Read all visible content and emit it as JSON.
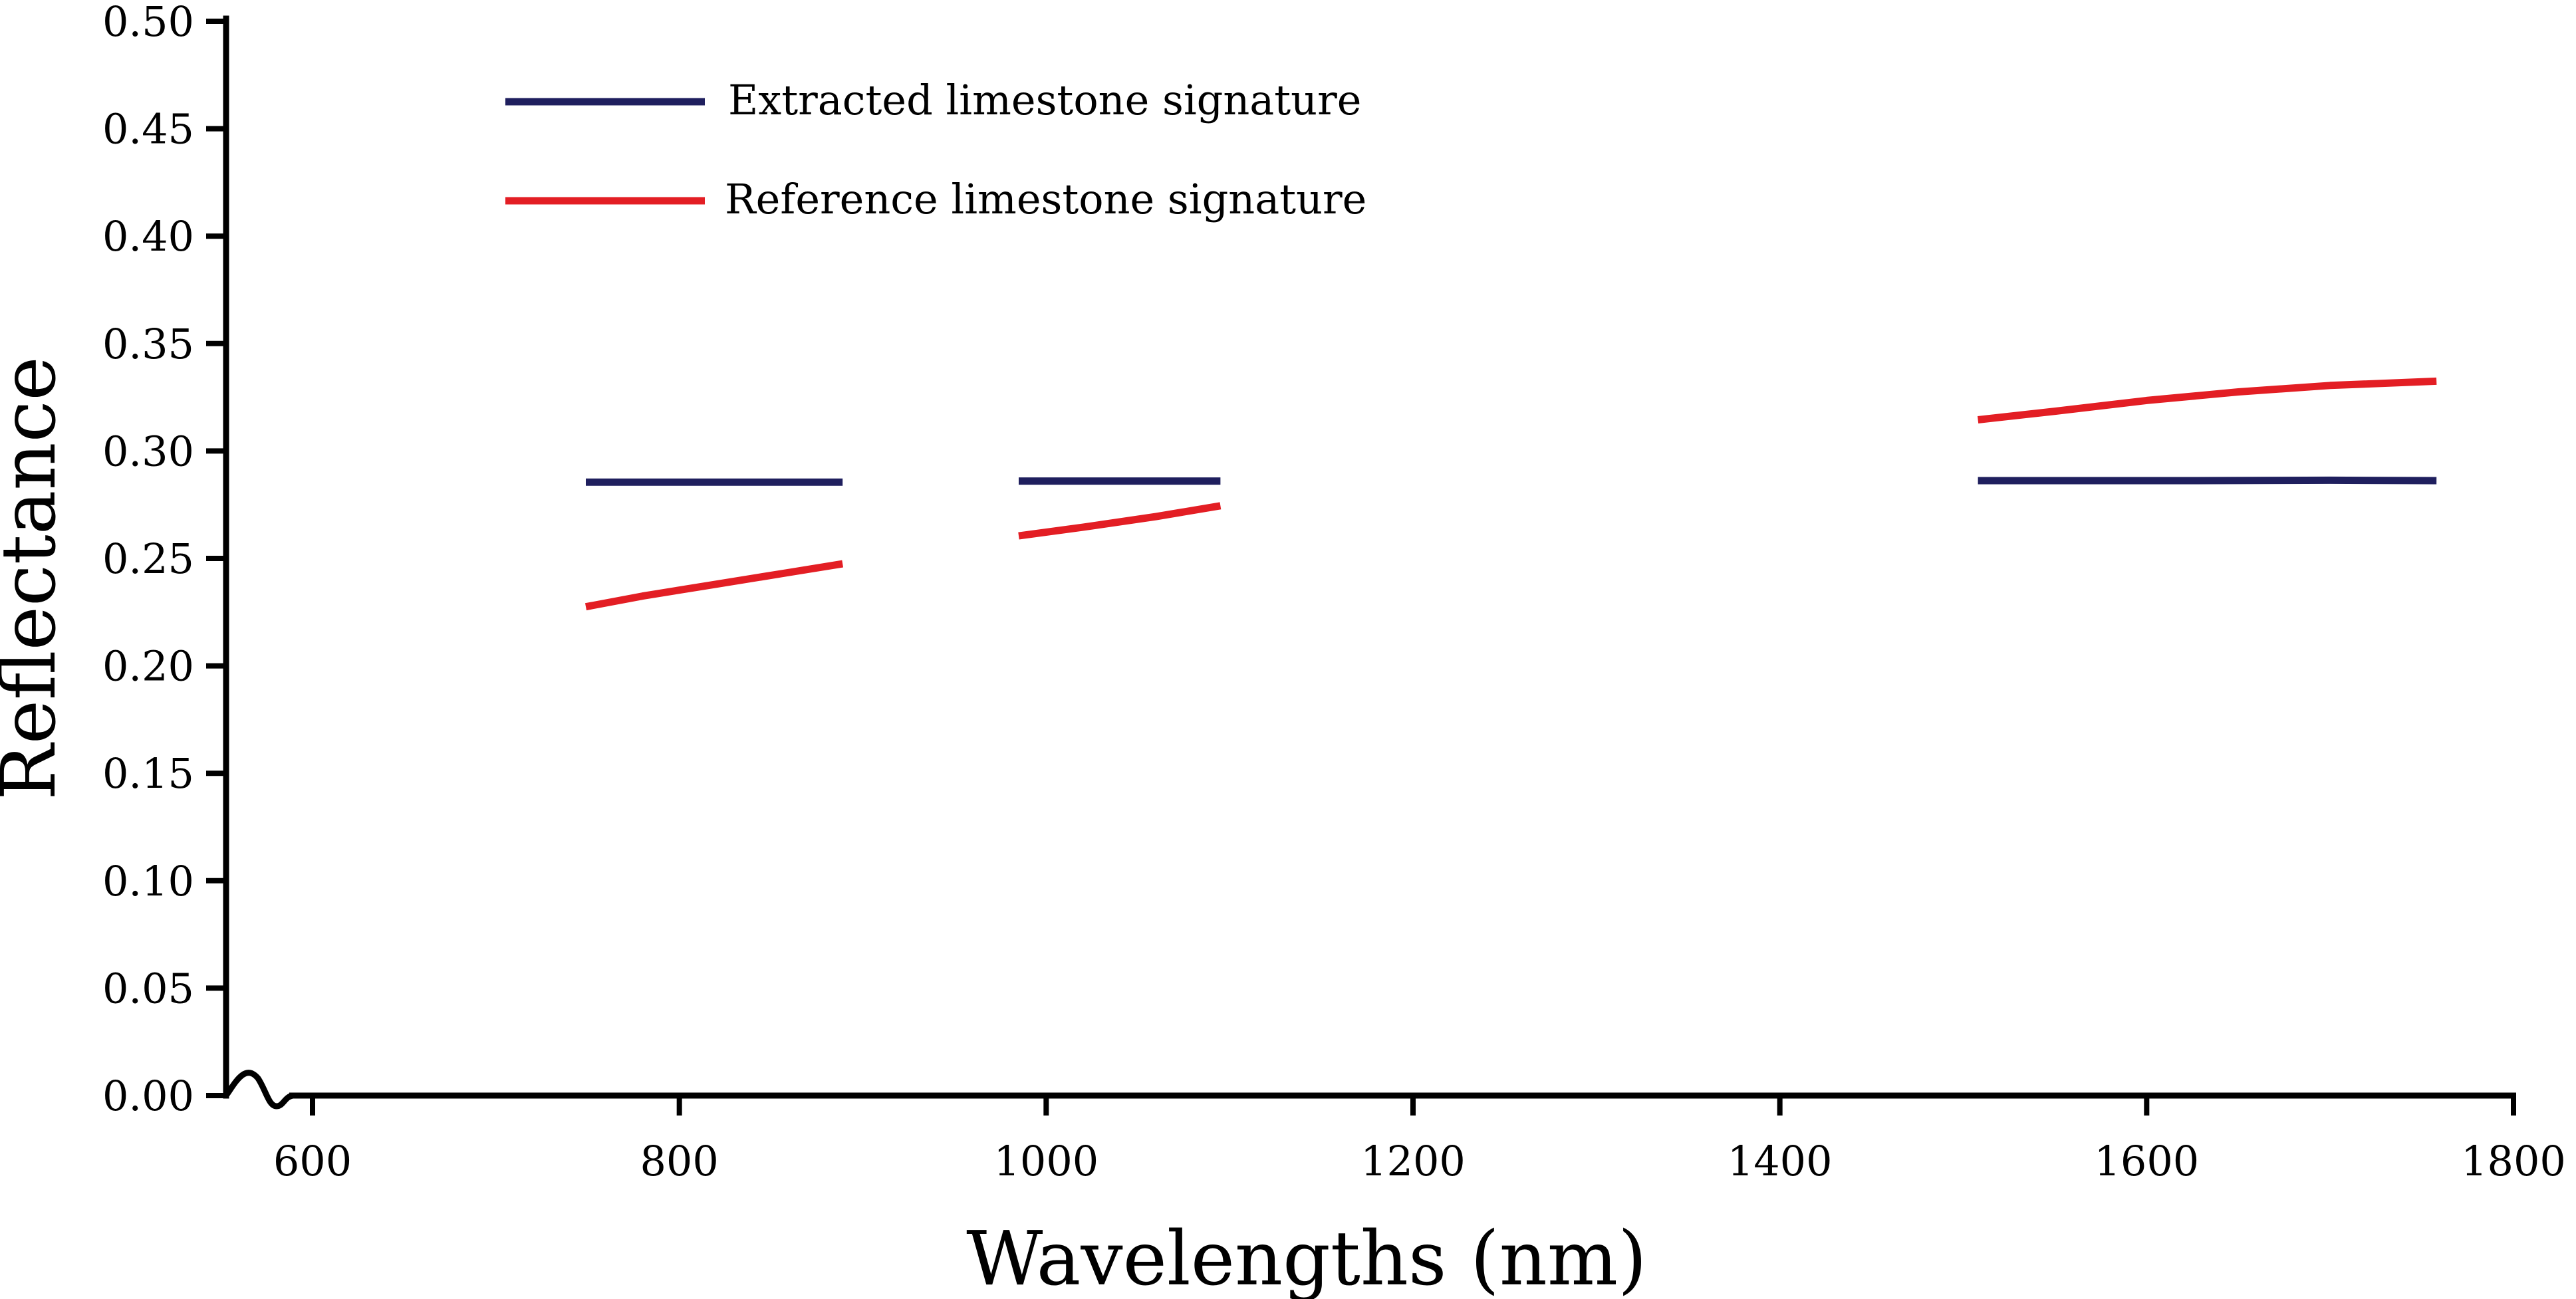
{
  "chart_data": {
    "type": "line",
    "title": "",
    "xlabel": "Wavelengths (nm)",
    "ylabel": "Reflectance",
    "xlim": [
      560,
      1800
    ],
    "ylim": [
      0,
      0.5
    ],
    "grid": false,
    "legend_position": "top-left",
    "x_ticks": [
      600,
      800,
      1000,
      1200,
      1400,
      1600,
      1800
    ],
    "x_tick_labels": [
      "600",
      "800",
      "1000",
      "1200",
      "1400",
      "1600",
      "1800"
    ],
    "y_ticks": [
      0,
      0.05,
      0.1,
      0.15,
      0.2,
      0.25,
      0.3,
      0.35,
      0.4,
      0.45,
      0.5
    ],
    "y_tick_labels": [
      "0.00",
      "0.05",
      "0.10",
      "0.15",
      "0.20",
      "0.25",
      "0.30",
      "0.35",
      "0.40",
      "0.45",
      "0.50"
    ],
    "series": [
      {
        "name": "Extracted limestone signature",
        "color": "#1f1f5e",
        "segments": [
          [
            [
              749,
              0.2855
            ],
            [
              800,
              0.2855
            ],
            [
              850,
              0.2855
            ],
            [
              889,
              0.2855
            ]
          ],
          [
            [
              985,
              0.286
            ],
            [
              1040,
              0.286
            ],
            [
              1095,
              0.286
            ]
          ],
          [
            [
              1508,
              0.2862
            ],
            [
              1560,
              0.2862
            ],
            [
              1620,
              0.2862
            ],
            [
              1700,
              0.2864
            ],
            [
              1758,
              0.2862
            ]
          ]
        ]
      },
      {
        "name": "Reference limestone signature",
        "color": "#e31e24",
        "segments": [
          [
            [
              749,
              0.2275
            ],
            [
              780,
              0.2325
            ],
            [
              820,
              0.238
            ],
            [
              860,
              0.2435
            ],
            [
              889,
              0.2475
            ]
          ],
          [
            [
              985,
              0.2605
            ],
            [
              1020,
              0.2645
            ],
            [
              1060,
              0.2695
            ],
            [
              1095,
              0.2745
            ]
          ],
          [
            [
              1508,
              0.3145
            ],
            [
              1550,
              0.3185
            ],
            [
              1600,
              0.3235
            ],
            [
              1650,
              0.3275
            ],
            [
              1700,
              0.3305
            ],
            [
              1758,
              0.3325
            ]
          ]
        ]
      }
    ]
  }
}
